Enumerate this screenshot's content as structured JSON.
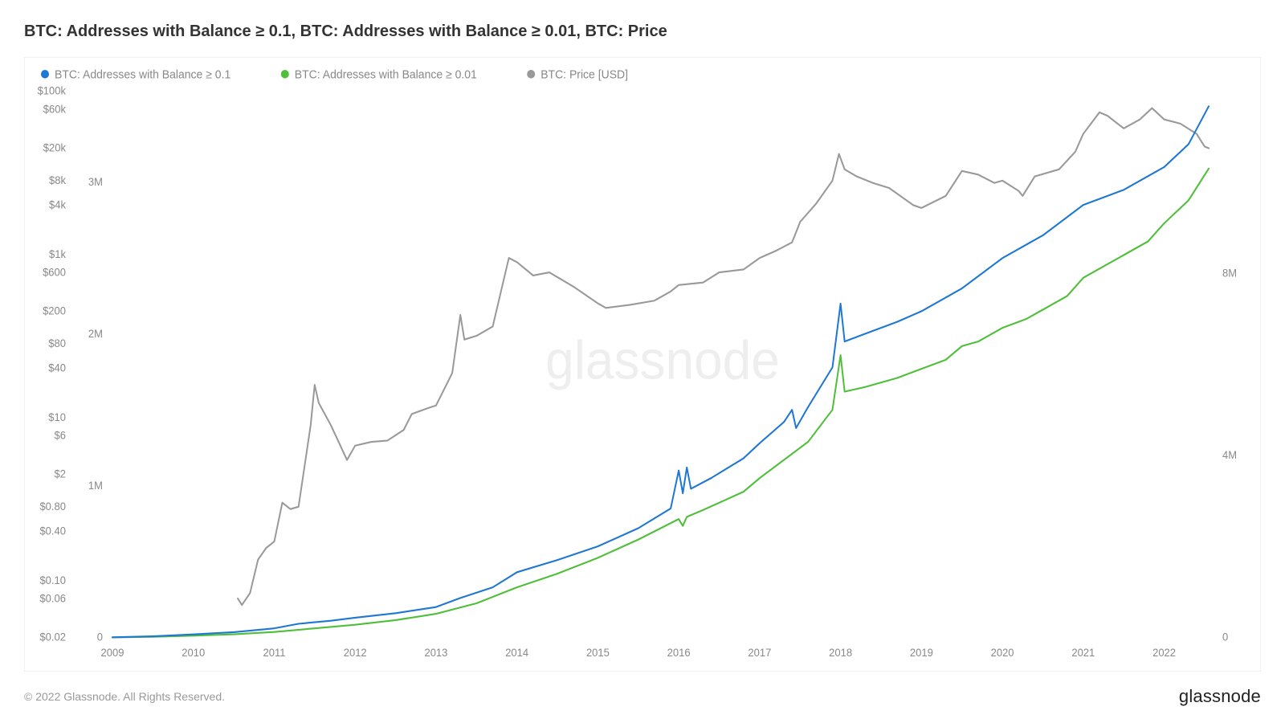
{
  "title": "BTC: Addresses with Balance ≥ 0.1, BTC: Addresses with Balance ≥ 0.01, BTC: Price",
  "copyright": "© 2022 Glassnode. All Rights Reserved.",
  "brand": "glassnode",
  "watermark": "glassnode",
  "chart": {
    "background_color": "#ffffff",
    "border_color": "#e5e5e5",
    "grid_color": "#f5f5f5",
    "axis_text_color": "#888888",
    "legend_text_color": "#888888",
    "watermark_color": "#e8e8e8",
    "line_width": 2,
    "axis_fontsize": 13,
    "legend_fontsize": 14,
    "left_axis": {
      "label": "",
      "type": "log",
      "ticks": [
        {
          "v": 0.02,
          "label": "$0.02"
        },
        {
          "v": 0.06,
          "label": "$0.06"
        },
        {
          "v": 0.1,
          "label": "$0.10"
        },
        {
          "v": 0.4,
          "label": "$0.40"
        },
        {
          "v": 0.8,
          "label": "$0.80"
        },
        {
          "v": 2,
          "label": "$2"
        },
        {
          "v": 6,
          "label": "$6"
        },
        {
          "v": 10,
          "label": "$10"
        },
        {
          "v": 40,
          "label": "$40"
        },
        {
          "v": 80,
          "label": "$80"
        },
        {
          "v": 200,
          "label": "$200"
        },
        {
          "v": 600,
          "label": "$600"
        },
        {
          "v": 1000,
          "label": "$1k"
        },
        {
          "v": 4000,
          "label": "$4k"
        },
        {
          "v": 8000,
          "label": "$8k"
        },
        {
          "v": 20000,
          "label": "$20k"
        },
        {
          "v": 60000,
          "label": "$60k"
        },
        {
          "v": 100000,
          "label": "$100k"
        }
      ],
      "min": 0.02,
      "max": 100000
    },
    "right_axis": {
      "label": "",
      "type": "linear",
      "ticks": [
        {
          "v": 0,
          "label": "0"
        },
        {
          "v": 4000000,
          "label": "4M"
        },
        {
          "v": 8000000,
          "label": "8M"
        }
      ],
      "min": 0,
      "max": 12000000
    },
    "left_axis_inner": {
      "type": "linear",
      "ticks": [
        {
          "v": 0,
          "label": "0"
        },
        {
          "v": 1000000,
          "label": "1M"
        },
        {
          "v": 2000000,
          "label": "2M"
        },
        {
          "v": 3000000,
          "label": "3M"
        }
      ],
      "min": 0,
      "max": 3600000
    },
    "x_axis": {
      "min": 2009,
      "max": 2022.6,
      "ticks": [
        2009,
        2010,
        2011,
        2012,
        2013,
        2014,
        2015,
        2016,
        2017,
        2018,
        2019,
        2020,
        2021,
        2022
      ]
    },
    "series": [
      {
        "name": "BTC: Addresses with Balance ≥ 0.1",
        "color": "#1f77d4",
        "axis": "left_inner",
        "data": [
          [
            2009.0,
            1000
          ],
          [
            2009.5,
            8000
          ],
          [
            2010.0,
            20000
          ],
          [
            2010.5,
            35000
          ],
          [
            2011.0,
            60000
          ],
          [
            2011.3,
            90000
          ],
          [
            2011.7,
            110000
          ],
          [
            2012.0,
            130000
          ],
          [
            2012.5,
            160000
          ],
          [
            2013.0,
            200000
          ],
          [
            2013.3,
            260000
          ],
          [
            2013.7,
            330000
          ],
          [
            2014.0,
            430000
          ],
          [
            2014.5,
            510000
          ],
          [
            2015.0,
            600000
          ],
          [
            2015.5,
            720000
          ],
          [
            2015.9,
            850000
          ],
          [
            2016.0,
            1100000
          ],
          [
            2016.05,
            950000
          ],
          [
            2016.1,
            1120000
          ],
          [
            2016.15,
            980000
          ],
          [
            2016.4,
            1050000
          ],
          [
            2016.8,
            1180000
          ],
          [
            2017.0,
            1280000
          ],
          [
            2017.3,
            1420000
          ],
          [
            2017.4,
            1500000
          ],
          [
            2017.45,
            1380000
          ],
          [
            2017.6,
            1520000
          ],
          [
            2017.9,
            1780000
          ],
          [
            2018.0,
            2200000
          ],
          [
            2018.05,
            1950000
          ],
          [
            2018.3,
            2000000
          ],
          [
            2018.7,
            2080000
          ],
          [
            2019.0,
            2150000
          ],
          [
            2019.5,
            2300000
          ],
          [
            2020.0,
            2500000
          ],
          [
            2020.5,
            2650000
          ],
          [
            2021.0,
            2850000
          ],
          [
            2021.5,
            2950000
          ],
          [
            2022.0,
            3100000
          ],
          [
            2022.3,
            3250000
          ],
          [
            2022.55,
            3500000
          ]
        ]
      },
      {
        "name": "BTC: Addresses with Balance ≥ 0.01",
        "color": "#4fbf3a",
        "axis": "right",
        "data": [
          [
            2009.0,
            2000
          ],
          [
            2009.5,
            15000
          ],
          [
            2010.0,
            40000
          ],
          [
            2010.5,
            70000
          ],
          [
            2011.0,
            120000
          ],
          [
            2011.5,
            200000
          ],
          [
            2012.0,
            280000
          ],
          [
            2012.5,
            380000
          ],
          [
            2013.0,
            520000
          ],
          [
            2013.5,
            750000
          ],
          [
            2014.0,
            1100000
          ],
          [
            2014.5,
            1400000
          ],
          [
            2015.0,
            1750000
          ],
          [
            2015.5,
            2150000
          ],
          [
            2016.0,
            2600000
          ],
          [
            2016.05,
            2450000
          ],
          [
            2016.1,
            2650000
          ],
          [
            2016.3,
            2800000
          ],
          [
            2016.8,
            3200000
          ],
          [
            2017.0,
            3500000
          ],
          [
            2017.3,
            3900000
          ],
          [
            2017.6,
            4300000
          ],
          [
            2017.9,
            5000000
          ],
          [
            2018.0,
            6200000
          ],
          [
            2018.05,
            5400000
          ],
          [
            2018.3,
            5500000
          ],
          [
            2018.7,
            5700000
          ],
          [
            2019.0,
            5900000
          ],
          [
            2019.3,
            6100000
          ],
          [
            2019.5,
            6400000
          ],
          [
            2019.7,
            6500000
          ],
          [
            2020.0,
            6800000
          ],
          [
            2020.3,
            7000000
          ],
          [
            2020.5,
            7200000
          ],
          [
            2020.8,
            7500000
          ],
          [
            2021.0,
            7900000
          ],
          [
            2021.3,
            8200000
          ],
          [
            2021.5,
            8400000
          ],
          [
            2021.8,
            8700000
          ],
          [
            2022.0,
            9100000
          ],
          [
            2022.3,
            9600000
          ],
          [
            2022.55,
            10300000
          ]
        ]
      },
      {
        "name": "BTC: Price [USD]",
        "color": "#999999",
        "axis": "left_log",
        "data": [
          [
            2010.55,
            0.06
          ],
          [
            2010.6,
            0.05
          ],
          [
            2010.7,
            0.07
          ],
          [
            2010.8,
            0.18
          ],
          [
            2010.9,
            0.25
          ],
          [
            2011.0,
            0.3
          ],
          [
            2011.1,
            0.9
          ],
          [
            2011.2,
            0.75
          ],
          [
            2011.3,
            0.8
          ],
          [
            2011.45,
            8
          ],
          [
            2011.5,
            25
          ],
          [
            2011.55,
            15
          ],
          [
            2011.7,
            8
          ],
          [
            2011.9,
            3
          ],
          [
            2012.0,
            4.5
          ],
          [
            2012.2,
            5
          ],
          [
            2012.4,
            5.2
          ],
          [
            2012.6,
            7
          ],
          [
            2012.7,
            11
          ],
          [
            2012.9,
            13
          ],
          [
            2013.0,
            14
          ],
          [
            2013.2,
            35
          ],
          [
            2013.3,
            180
          ],
          [
            2013.35,
            90
          ],
          [
            2013.5,
            100
          ],
          [
            2013.7,
            130
          ],
          [
            2013.9,
            900
          ],
          [
            2014.0,
            800
          ],
          [
            2014.2,
            550
          ],
          [
            2014.4,
            600
          ],
          [
            2014.7,
            400
          ],
          [
            2015.0,
            250
          ],
          [
            2015.1,
            220
          ],
          [
            2015.4,
            240
          ],
          [
            2015.7,
            270
          ],
          [
            2015.9,
            350
          ],
          [
            2016.0,
            420
          ],
          [
            2016.3,
            450
          ],
          [
            2016.5,
            600
          ],
          [
            2016.8,
            650
          ],
          [
            2017.0,
            900
          ],
          [
            2017.2,
            1100
          ],
          [
            2017.4,
            1400
          ],
          [
            2017.5,
            2500
          ],
          [
            2017.7,
            4200
          ],
          [
            2017.9,
            8000
          ],
          [
            2017.98,
            17000
          ],
          [
            2018.05,
            11000
          ],
          [
            2018.2,
            9000
          ],
          [
            2018.4,
            7500
          ],
          [
            2018.6,
            6500
          ],
          [
            2018.9,
            4000
          ],
          [
            2019.0,
            3700
          ],
          [
            2019.3,
            5200
          ],
          [
            2019.5,
            10500
          ],
          [
            2019.7,
            9500
          ],
          [
            2019.9,
            7500
          ],
          [
            2020.0,
            8000
          ],
          [
            2020.2,
            6000
          ],
          [
            2020.25,
            5200
          ],
          [
            2020.4,
            9000
          ],
          [
            2020.7,
            11000
          ],
          [
            2020.9,
            18000
          ],
          [
            2021.0,
            30000
          ],
          [
            2021.2,
            55000
          ],
          [
            2021.3,
            50000
          ],
          [
            2021.5,
            35000
          ],
          [
            2021.7,
            45000
          ],
          [
            2021.85,
            62000
          ],
          [
            2022.0,
            45000
          ],
          [
            2022.2,
            40000
          ],
          [
            2022.4,
            30000
          ],
          [
            2022.5,
            21000
          ],
          [
            2022.55,
            20000
          ]
        ]
      }
    ],
    "legend": [
      {
        "label": "BTC: Addresses with Balance ≥ 0.1",
        "color": "#1f77d4"
      },
      {
        "label": "BTC: Addresses with Balance ≥ 0.01",
        "color": "#4fbf3a"
      },
      {
        "label": "BTC: Price [USD]",
        "color": "#999999"
      }
    ]
  }
}
